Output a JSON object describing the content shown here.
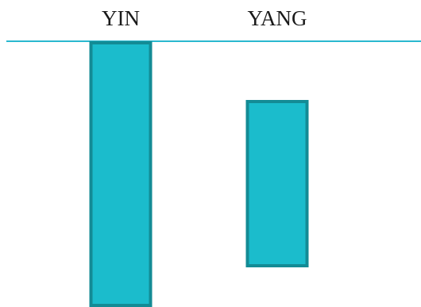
{
  "chart_data": {
    "type": "bar",
    "categories": [
      "YIN",
      "YANG"
    ],
    "values": [
      -1.0,
      -0.65
    ],
    "baseline_value": 0,
    "title": "",
    "xlabel": "",
    "ylabel": "",
    "ylim": [
      -1.0,
      0
    ],
    "grid": false,
    "legend": "none",
    "category_labels_position": "top",
    "colors": {
      "bar_fill": "#1bbccc",
      "bar_stroke": "#138b95",
      "axis_line": "#2ab8cf"
    }
  }
}
